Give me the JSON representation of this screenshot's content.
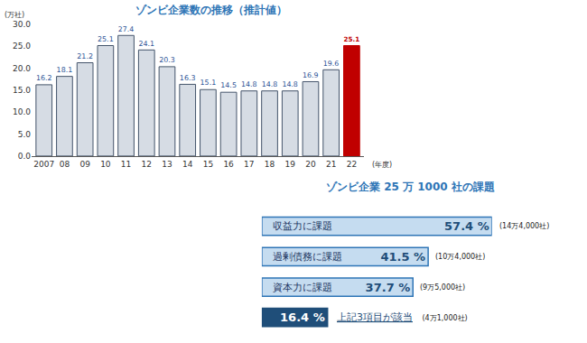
{
  "chart_data": [
    {
      "type": "bar",
      "title": "ゾンビ企業数の推移（推計値）",
      "x_label": "(年度)",
      "y_label": "(万社)",
      "categories": [
        "2007",
        "08",
        "09",
        "10",
        "11",
        "12",
        "13",
        "14",
        "15",
        "16",
        "17",
        "18",
        "19",
        "20",
        "21",
        "22"
      ],
      "values": [
        16.2,
        18.1,
        21.2,
        25.1,
        27.4,
        24.1,
        20.3,
        16.3,
        15.1,
        14.5,
        14.8,
        14.8,
        14.8,
        16.9,
        19.6,
        25.1
      ],
      "colors": [
        "#d6dce4",
        "#d6dce4",
        "#d6dce4",
        "#d6dce4",
        "#d6dce4",
        "#d6dce4",
        "#d6dce4",
        "#d6dce4",
        "#d6dce4",
        "#d6dce4",
        "#d6dce4",
        "#d6dce4",
        "#d6dce4",
        "#d6dce4",
        "#d6dce4",
        "#c00000"
      ],
      "ylim": [
        0,
        30
      ],
      "yticks": [
        {
          "value": 0,
          "label": "0.0"
        },
        {
          "value": 5,
          "label": "5.0"
        },
        {
          "value": 10,
          "label": "10.0"
        },
        {
          "value": 15,
          "label": "15.0"
        },
        {
          "value": 20,
          "label": "20.0"
        },
        {
          "value": 25,
          "label": "25.0"
        },
        {
          "value": 30,
          "label": "30.0"
        }
      ],
      "grid": false,
      "data_labels": true
    },
    {
      "type": "bar",
      "orientation": "horizontal",
      "title": "ゾンビ企業 25 万 1000 社の課題",
      "categories": [
        "収益力に課題",
        "過剰債務に課題",
        "資本力に課題",
        "上記3項目が該当"
      ],
      "values": [
        57.4,
        41.5,
        37.7,
        16.4
      ],
      "value_labels": [
        "57.4 %",
        "41.5 %",
        "37.7 %",
        "16.4 %"
      ],
      "counts": [
        "(14万4,000社)",
        "(10万4,000社)",
        "(9万5,000社)",
        "(4万1,000社)"
      ],
      "colors": [
        "#c5dcf0",
        "#c5dcf0",
        "#c5dcf0",
        "#1f4e79"
      ],
      "xlim": [
        0,
        57.4
      ],
      "tick_labels": false,
      "grid": false,
      "data_labels": true
    }
  ]
}
